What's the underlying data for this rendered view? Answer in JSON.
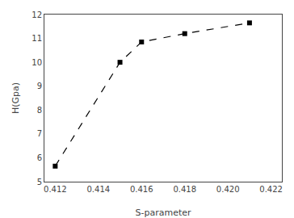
{
  "chart_data": {
    "type": "line",
    "x": [
      0.412,
      0.415,
      0.416,
      0.418,
      0.421
    ],
    "values": [
      5.65,
      10.0,
      10.85,
      11.2,
      11.65
    ],
    "xlabel": "S-parameter",
    "ylabel": "H(Gpa)",
    "xlim": [
      0.4115,
      0.4225
    ],
    "ylim": [
      5.0,
      12.0
    ],
    "xticks": [
      0.412,
      0.414,
      0.416,
      0.418,
      {
        "value": 0.42,
        "label": "0.420"
      },
      0.422
    ],
    "yticks": [
      5,
      6,
      7,
      8,
      9,
      10,
      11,
      12
    ],
    "color": "#000000",
    "marker": "square",
    "line_style": "dashed",
    "grid": false
  }
}
